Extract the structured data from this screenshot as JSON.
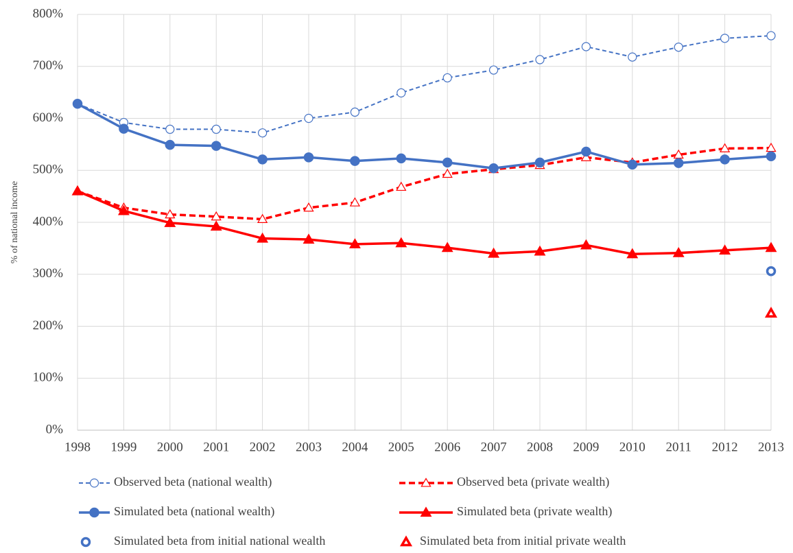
{
  "chart_data": {
    "type": "line",
    "y_label": "% of national income",
    "categories": [
      "1998",
      "1999",
      "2000",
      "2001",
      "2002",
      "2003",
      "2004",
      "2005",
      "2006",
      "2007",
      "2008",
      "2009",
      "2010",
      "2011",
      "2012",
      "2013"
    ],
    "ylim": [
      0,
      800
    ],
    "yticks": [
      {
        "value": 0,
        "label": "0%"
      },
      {
        "value": 100,
        "label": "100%"
      },
      {
        "value": 200,
        "label": "200%"
      },
      {
        "value": 300,
        "label": "300%"
      },
      {
        "value": 400,
        "label": "400%"
      },
      {
        "value": 500,
        "label": "500%"
      },
      {
        "value": 600,
        "label": "600%"
      },
      {
        "value": 700,
        "label": "700%"
      },
      {
        "value": 800,
        "label": "800%"
      }
    ],
    "grid": true,
    "series": [
      {
        "name": "Observed beta (national wealth)",
        "color": "#4472c4",
        "line": "dashed",
        "width": 2,
        "marker": "circle",
        "filled": false,
        "values": [
          628,
          592,
          579,
          579,
          572,
          600,
          612,
          649,
          678,
          693,
          713,
          738,
          718,
          737,
          754,
          759
        ]
      },
      {
        "name": "Observed beta (private wealth)",
        "color": "#ff0000",
        "line": "dashed",
        "width": 3.5,
        "marker": "triangle",
        "filled": false,
        "values": [
          460,
          428,
          415,
          411,
          406,
          428,
          438,
          468,
          493,
          502,
          510,
          525,
          515,
          530,
          542,
          543
        ]
      },
      {
        "name": "Simulated beta (national wealth)",
        "color": "#4472c4",
        "line": "solid",
        "width": 3.5,
        "marker": "circle",
        "filled": true,
        "values": [
          628,
          580,
          549,
          547,
          521,
          525,
          518,
          523,
          515,
          504,
          515,
          536,
          511,
          514,
          521,
          527
        ]
      },
      {
        "name": "Simulated beta (private wealth)",
        "color": "#ff0000",
        "line": "solid",
        "width": 3.5,
        "marker": "triangle",
        "filled": true,
        "values": [
          460,
          422,
          399,
          392,
          369,
          367,
          358,
          360,
          351,
          340,
          344,
          356,
          339,
          341,
          346,
          351
        ]
      },
      {
        "name": "Simulated beta from initial national wealth",
        "color": "#4472c4",
        "line": "none",
        "width": 3,
        "marker": "circle",
        "filled": false,
        "values": [
          null,
          null,
          null,
          null,
          null,
          null,
          null,
          null,
          null,
          null,
          null,
          null,
          null,
          null,
          null,
          306
        ]
      },
      {
        "name": "Simulated beta from initial private wealth",
        "color": "#ff0000",
        "line": "none",
        "width": 3,
        "marker": "triangle",
        "filled": false,
        "values": [
          null,
          null,
          null,
          null,
          null,
          null,
          null,
          null,
          null,
          null,
          null,
          null,
          null,
          null,
          null,
          225
        ]
      }
    ]
  }
}
